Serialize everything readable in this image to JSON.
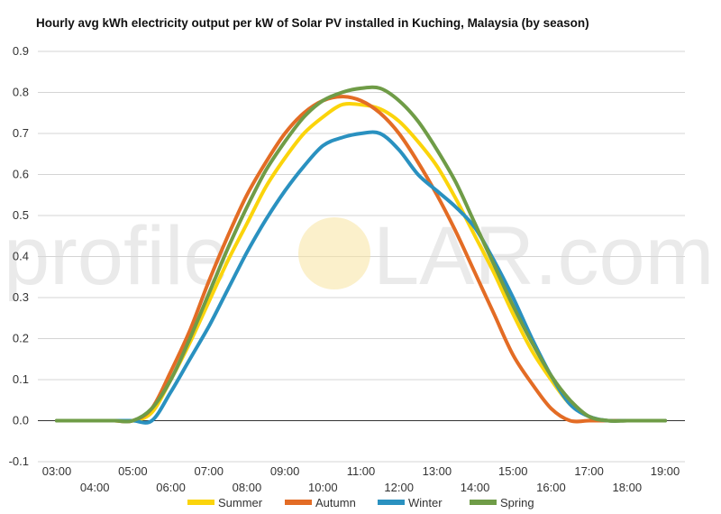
{
  "chart_data": {
    "type": "line",
    "title": "Hourly avg kWh electricity output per kW of Solar PV installed in Kuching, Malaysia (by season)",
    "watermark": {
      "left": "profile",
      "right": "LAR.com",
      "sun_color": "#f8e3a0"
    },
    "x": [
      "03:00",
      "03:30",
      "04:00",
      "04:30",
      "05:00",
      "05:30",
      "06:00",
      "06:30",
      "07:00",
      "07:30",
      "08:00",
      "08:30",
      "09:00",
      "09:30",
      "10:00",
      "10:30",
      "11:00",
      "11:30",
      "12:00",
      "12:30",
      "13:00",
      "13:30",
      "14:00",
      "14:30",
      "15:00",
      "15:30",
      "16:00",
      "16:30",
      "17:00",
      "17:30",
      "18:00",
      "18:30",
      "19:00"
    ],
    "x_tick_labels": [
      "03:00",
      "04:00",
      "05:00",
      "06:00",
      "07:00",
      "08:00",
      "09:00",
      "10:00",
      "11:00",
      "12:00",
      "13:00",
      "14:00",
      "15:00",
      "16:00",
      "17:00",
      "18:00",
      "19:00"
    ],
    "ylim": [
      -0.1,
      0.9
    ],
    "y_ticks": [
      "-0.1",
      "0.0",
      "0.1",
      "0.2",
      "0.3",
      "0.4",
      "0.5",
      "0.6",
      "0.7",
      "0.8",
      "0.9"
    ],
    "grid": true,
    "legend_position": "bottom",
    "series": [
      {
        "name": "Summer",
        "color": "#fbd40b",
        "values": [
          0.0,
          0.0,
          0.0,
          0.0,
          0.0,
          0.02,
          0.1,
          0.19,
          0.29,
          0.39,
          0.48,
          0.57,
          0.64,
          0.7,
          0.74,
          0.77,
          0.77,
          0.76,
          0.73,
          0.68,
          0.62,
          0.54,
          0.45,
          0.36,
          0.26,
          0.17,
          0.1,
          0.04,
          0.01,
          0.0,
          0.0,
          0.0,
          0.0
        ]
      },
      {
        "name": "Autumn",
        "color": "#e36c25",
        "values": [
          0.0,
          0.0,
          0.0,
          0.0,
          0.0,
          0.03,
          0.12,
          0.22,
          0.34,
          0.45,
          0.55,
          0.63,
          0.7,
          0.75,
          0.78,
          0.79,
          0.78,
          0.75,
          0.7,
          0.63,
          0.55,
          0.46,
          0.36,
          0.26,
          0.16,
          0.09,
          0.03,
          0.0,
          0.0,
          0.0,
          0.0,
          0.0,
          0.0
        ]
      },
      {
        "name": "Winter",
        "color": "#2a91c0",
        "values": [
          0.0,
          0.0,
          0.0,
          0.0,
          0.0,
          0.0,
          0.07,
          0.15,
          0.23,
          0.32,
          0.41,
          0.49,
          0.56,
          0.62,
          0.67,
          0.69,
          0.7,
          0.7,
          0.66,
          0.6,
          0.56,
          0.52,
          0.47,
          0.39,
          0.3,
          0.2,
          0.11,
          0.04,
          0.01,
          0.0,
          0.0,
          0.0,
          0.0
        ]
      },
      {
        "name": "Spring",
        "color": "#6f9c47",
        "values": [
          0.0,
          0.0,
          0.0,
          0.0,
          0.0,
          0.03,
          0.1,
          0.2,
          0.31,
          0.42,
          0.52,
          0.61,
          0.68,
          0.74,
          0.78,
          0.8,
          0.81,
          0.81,
          0.78,
          0.73,
          0.66,
          0.58,
          0.48,
          0.38,
          0.28,
          0.19,
          0.11,
          0.05,
          0.01,
          0.0,
          0.0,
          0.0,
          0.0
        ]
      }
    ]
  }
}
